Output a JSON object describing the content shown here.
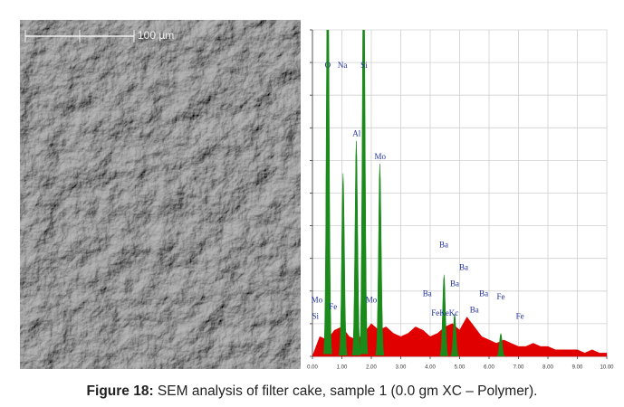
{
  "scale_bar": "100 µm",
  "chart_data": {
    "type": "spectrum",
    "xlim": [
      0,
      10
    ],
    "xticks": [
      {
        "value": 0,
        "label": "0.00"
      },
      {
        "value": 1,
        "label": "1.00"
      },
      {
        "value": 2,
        "label": "2.00"
      },
      {
        "value": 3,
        "label": "3.00"
      },
      {
        "value": 4,
        "label": "4.00"
      },
      {
        "value": 5,
        "label": "5.00"
      },
      {
        "value": 6,
        "label": "6.00"
      },
      {
        "value": 7,
        "label": "7.00"
      },
      {
        "value": 8,
        "label": "8.00"
      },
      {
        "value": 9,
        "label": "9.00"
      },
      {
        "value": 10,
        "label": "10.00"
      }
    ],
    "ylim": [
      0,
      100
    ],
    "yticks": [
      0,
      10,
      20,
      30,
      40,
      50,
      60,
      70,
      80,
      90,
      100
    ],
    "grid": true,
    "background": {
      "color": "#e00000",
      "x": [
        0,
        0.25,
        0.5,
        0.75,
        1,
        1.25,
        1.5,
        1.75,
        2,
        2.25,
        2.5,
        2.75,
        3,
        3.25,
        3.5,
        3.75,
        4,
        4.25,
        4.5,
        4.75,
        5,
        5.25,
        5.5,
        5.75,
        6,
        6.25,
        6.5,
        6.75,
        7,
        7.25,
        7.5,
        7.75,
        8,
        8.25,
        8.5,
        8.75,
        9,
        9.25,
        9.5,
        9.75,
        10
      ],
      "values": [
        0,
        6,
        5,
        8,
        9,
        6,
        5,
        7,
        10,
        8,
        9,
        7,
        6,
        7,
        9,
        8,
        6,
        7,
        9,
        10,
        8,
        12,
        9,
        6,
        5,
        4,
        5,
        4,
        3,
        3,
        4,
        3,
        3,
        2,
        2,
        2,
        2,
        1,
        2,
        1,
        1
      ]
    },
    "peaks": {
      "color": "#1a8a1a",
      "x": [
        0.52,
        1.04,
        1.49,
        1.74,
        2.29,
        4.47,
        4.83,
        6.4
      ],
      "values": [
        130,
        56,
        66,
        130,
        59,
        25,
        13,
        7
      ]
    },
    "annotation_color": "#1f2fa0",
    "annotations": [
      {
        "text": "O",
        "x": 0.52,
        "y": 89
      },
      {
        "text": "Na",
        "x": 1.02,
        "y": 89
      },
      {
        "text": "Si",
        "x": 1.75,
        "y": 89
      },
      {
        "text": "Al",
        "x": 1.5,
        "y": 68
      },
      {
        "text": "Mo",
        "x": 2.3,
        "y": 61
      },
      {
        "text": "Ba",
        "x": 4.46,
        "y": 34
      },
      {
        "text": "Ba",
        "x": 5.14,
        "y": 27
      },
      {
        "text": "Ba",
        "x": 4.83,
        "y": 22
      },
      {
        "text": "Ba",
        "x": 3.9,
        "y": 19
      },
      {
        "text": "Ba",
        "x": 5.82,
        "y": 19
      },
      {
        "text": "Ba",
        "x": 5.5,
        "y": 14
      },
      {
        "text": "Fe",
        "x": 6.4,
        "y": 18
      },
      {
        "text": "Fe",
        "x": 7.05,
        "y": 12
      },
      {
        "text": "Mo",
        "x": 2.0,
        "y": 17
      },
      {
        "text": "Mo",
        "x": 0.15,
        "y": 17
      },
      {
        "text": "Si",
        "x": 0.1,
        "y": 12
      },
      {
        "text": "Fe",
        "x": 0.7,
        "y": 15
      },
      {
        "text": "FeKeKc",
        "x": 4.5,
        "y": 13
      }
    ]
  },
  "caption": {
    "label": "Figure 18:",
    "text": " SEM analysis of filter cake, sample 1 (0.0 gm XC – Polymer)."
  }
}
